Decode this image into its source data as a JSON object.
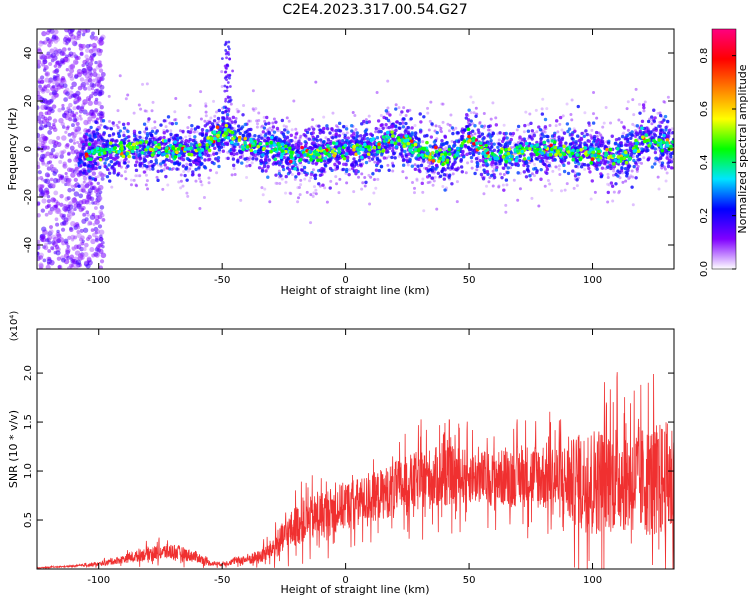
{
  "title": "C2E4.2023.317.00.54.G27",
  "chart_data": [
    {
      "type": "scatter",
      "subtype": "spectrogram",
      "xlabel": "Height of straight line (km)",
      "ylabel": "Frequency (Hz)",
      "xlim": [
        -125,
        133
      ],
      "ylim": [
        -50,
        50
      ],
      "xticks": [
        -100,
        -50,
        0,
        50,
        100
      ],
      "yticks": [
        -40,
        -20,
        0,
        20,
        40
      ],
      "colorbar": {
        "label": "Normalized spectral amplitude",
        "ticks": [
          "0.0",
          "0.2",
          "0.4",
          "0.6",
          "0.8"
        ],
        "tick_values": [
          0.0,
          0.2,
          0.4,
          0.6,
          0.8
        ],
        "range": [
          0,
          0.9
        ],
        "colors": [
          "#ffffff",
          "#8000ff",
          "#0000ff",
          "#00e5ff",
          "#00ff00",
          "#ffff00",
          "#ff8000",
          "#ff0000",
          "#ff0080"
        ]
      },
      "ridge": {
        "x": [
          -108,
          -100,
          -90,
          -80,
          -70,
          -60,
          -55,
          -50,
          -45,
          -40,
          -30,
          -20,
          -10,
          0,
          10,
          20,
          25,
          30,
          35,
          40,
          45,
          50,
          55,
          60,
          70,
          80,
          90,
          100,
          110,
          115,
          120,
          125,
          133
        ],
        "y": [
          -3,
          -1,
          0,
          1,
          -1,
          0,
          3,
          8,
          3,
          2,
          1,
          -3,
          -2,
          0,
          0,
          5,
          2,
          -1,
          -3,
          -4,
          -1,
          6,
          0,
          -3,
          -2,
          0,
          -1,
          -2,
          -3,
          -3,
          5,
          3,
          1
        ]
      },
      "grid": false
    },
    {
      "type": "line",
      "xlabel": "Height of straight line (km)",
      "ylabel": "SNR (10 * v/v)",
      "yscale_label": "(x10⁴)",
      "xlim": [
        -125,
        133
      ],
      "ylim": [
        0,
        2.45
      ],
      "xticks": [
        -100,
        -50,
        0,
        50,
        100
      ],
      "yticks": [
        0.5,
        1.0,
        1.5,
        2.0
      ],
      "ytick_labels": [
        "0.5",
        "1.0",
        "1.5",
        "2.0"
      ],
      "color": "#f03030",
      "envelope": {
        "x": [
          -125,
          -110,
          -100,
          -90,
          -80,
          -70,
          -60,
          -55,
          -50,
          -45,
          -40,
          -35,
          -30,
          -25,
          -20,
          -10,
          0,
          10,
          20,
          30,
          40,
          50,
          60,
          70,
          80,
          90,
          100,
          110,
          120,
          133
        ],
        "mean": [
          0.01,
          0.03,
          0.05,
          0.1,
          0.16,
          0.18,
          0.12,
          0.06,
          0.05,
          0.08,
          0.1,
          0.12,
          0.2,
          0.32,
          0.45,
          0.55,
          0.65,
          0.72,
          0.82,
          0.9,
          0.95,
          0.95,
          0.92,
          0.95,
          0.95,
          0.88,
          0.9,
          0.95,
          0.9,
          0.9
        ],
        "spread": [
          0.005,
          0.01,
          0.03,
          0.06,
          0.1,
          0.12,
          0.08,
          0.04,
          0.03,
          0.05,
          0.08,
          0.1,
          0.15,
          0.25,
          0.3,
          0.35,
          0.35,
          0.35,
          0.4,
          0.45,
          0.45,
          0.4,
          0.4,
          0.45,
          0.5,
          0.6,
          0.8,
          0.8,
          0.8,
          0.9
        ]
      },
      "grid": false
    }
  ]
}
